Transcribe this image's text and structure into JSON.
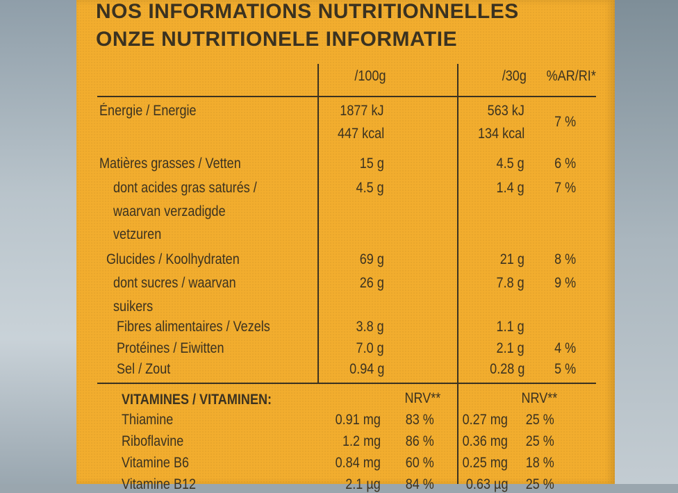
{
  "titles": {
    "line1": "NOS INFORMATIONS NUTRITIONNELLES",
    "line2": "ONZE NUTRITIONELE INFORMATIE"
  },
  "columns": {
    "per100": "/100g",
    "per30": "/30g",
    "ri": "%AR/RI*"
  },
  "nutrients": [
    {
      "name": [
        "Énergie / Energie"
      ],
      "per100": [
        "1877 kJ",
        "447 kcal"
      ],
      "per30": [
        "563 kJ",
        "134 kcal"
      ],
      "ri": "7 %"
    },
    {
      "name": [
        "Matières grasses / Vetten"
      ],
      "per100": [
        "15 g"
      ],
      "per30": [
        "4.5 g"
      ],
      "ri": "6 %"
    },
    {
      "name": [
        "dont acides gras saturés /",
        "waarvan verzadigde",
        "vetzuren"
      ],
      "per100": [
        "4.5 g"
      ],
      "per30": [
        "1.4 g"
      ],
      "ri": "7 %"
    },
    {
      "name": [
        "Glucides / Koolhydraten"
      ],
      "per100": [
        "69 g"
      ],
      "per30": [
        "21 g"
      ],
      "ri": "8 %"
    },
    {
      "name": [
        "dont sucres / waarvan",
        "suikers"
      ],
      "per100": [
        "26 g"
      ],
      "per30": [
        "7.8 g"
      ],
      "ri": "9 %"
    },
    {
      "name": [
        "Fibres alimentaires / Vezels"
      ],
      "per100": [
        "3.8 g"
      ],
      "per30": [
        "1.1 g"
      ],
      "ri": ""
    },
    {
      "name": [
        "Protéines / Eiwitten"
      ],
      "per100": [
        "7.0 g"
      ],
      "per30": [
        "2.1 g"
      ],
      "ri": "4 %"
    },
    {
      "name": [
        "Sel / Zout"
      ],
      "per100": [
        "0.94 g"
      ],
      "per30": [
        "0.28 g"
      ],
      "ri": "5 %"
    }
  ],
  "vitamins_header": {
    "label": "VITAMINES / VITAMINEN:",
    "nrv100": "NRV**",
    "nrv30": "NRV**"
  },
  "vitamins": [
    {
      "name": "Thiamine",
      "per100": "0.91 mg",
      "nrv100": "83 %",
      "per30": "0.27 mg",
      "nrv30": "25 %"
    },
    {
      "name": "Riboflavine",
      "per100": "1.2 mg",
      "nrv100": "86 %",
      "per30": "0.36 mg",
      "nrv30": "25 %"
    },
    {
      "name": "Vitamine B6",
      "per100": "0.84 mg",
      "nrv100": "60 %",
      "per30": "0.25 mg",
      "nrv30": "18 %"
    },
    {
      "name": "Vitamine B12",
      "per100": "2.1 µg",
      "nrv100": "84 %",
      "per30": "0.63 µg",
      "nrv30": "25 %"
    }
  ]
}
